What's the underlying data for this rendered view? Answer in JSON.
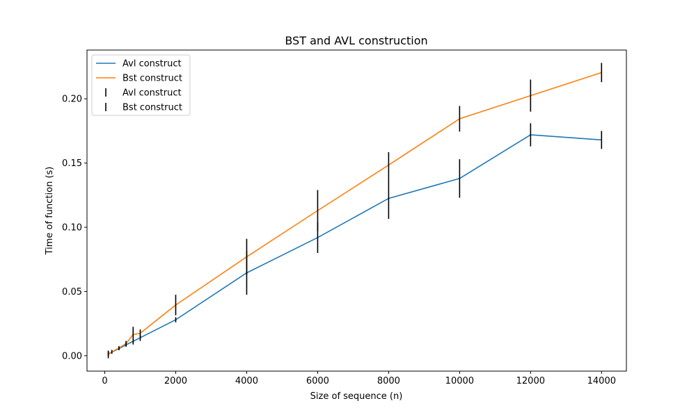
{
  "chart_data": {
    "type": "line",
    "title": "BST and AVL construction",
    "xlabel": "Size of sequence (n)",
    "ylabel": "Time of function (s)",
    "xlim": [
      -500,
      14700
    ],
    "ylim": [
      -0.012,
      0.238
    ],
    "xticks": [
      0,
      2000,
      4000,
      6000,
      8000,
      10000,
      12000,
      14000
    ],
    "yticks": [
      0.0,
      0.05,
      0.1,
      0.15,
      0.2
    ],
    "ytick_labels": [
      "0.00",
      "0.05",
      "0.10",
      "0.15",
      "0.20"
    ],
    "grid": false,
    "legend_position": "upper-left",
    "x": [
      100,
      200,
      400,
      600,
      800,
      1000,
      2000,
      4000,
      6000,
      8000,
      10000,
      12000,
      14000
    ],
    "series": [
      {
        "name": "Avl construct",
        "color": "#1f77b4",
        "values": [
          0.0015,
          0.0028,
          0.0055,
          0.0085,
          0.0112,
          0.014,
          0.028,
          0.0645,
          0.092,
          0.1225,
          0.138,
          0.172,
          0.168
        ],
        "errors": [
          0.002,
          0.0012,
          0.0012,
          0.0015,
          0.0025,
          0.0025,
          0.002,
          0.017,
          0.012,
          0.016,
          0.015,
          0.009,
          0.007
        ]
      },
      {
        "name": "Bst construct",
        "color": "#ff7f0e",
        "values": [
          0.001,
          0.003,
          0.006,
          0.0095,
          0.0165,
          0.0175,
          0.0395,
          0.077,
          0.113,
          0.1485,
          0.1845,
          0.2025,
          0.2205
        ],
        "errors": [
          0.003,
          0.0015,
          0.0015,
          0.002,
          0.006,
          0.003,
          0.008,
          0.014,
          0.016,
          0.01,
          0.01,
          0.0125,
          0.0075
        ]
      }
    ],
    "legend_entries": [
      {
        "label": "Avl construct",
        "kind": "line",
        "series": 0
      },
      {
        "label": "Bst construct",
        "kind": "line",
        "series": 1
      },
      {
        "label": "Avl construct",
        "kind": "errorbar",
        "series": 0
      },
      {
        "label": "Bst construct",
        "kind": "errorbar",
        "series": 1
      }
    ],
    "errorbar_color": "#000000"
  }
}
